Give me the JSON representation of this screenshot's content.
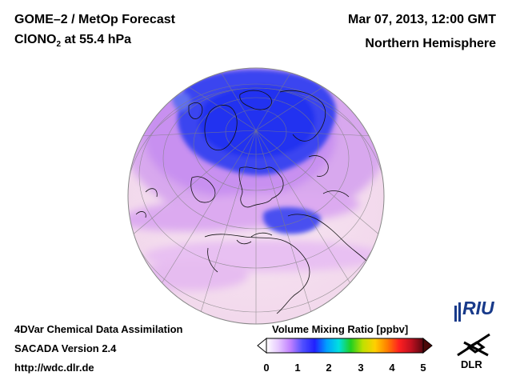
{
  "header": {
    "left_title": "GOME–2 / MetOp Forecast",
    "species_prefix": "ClONO",
    "species_sub": "2",
    "species_suffix": " at 55.4 hPa",
    "date": "Mar 07, 2013, 12:00 GMT",
    "region": "Northern Hemisphere"
  },
  "footer": {
    "line1": "4DVar Chemical Data Assimilation",
    "line2": "SACADA Version 2.4",
    "line3": "http://wdc.dlr.de"
  },
  "colorbar": {
    "title": "Volume Mixing Ratio [ppbv]",
    "ticks": [
      "0",
      "1",
      "2",
      "3",
      "4",
      "5"
    ],
    "colors": [
      "#ffffff",
      "#e6c8ff",
      "#c080ff",
      "#5050ff",
      "#2020ff",
      "#00a0ff",
      "#00e0e0",
      "#20d020",
      "#c0e000",
      "#ffd000",
      "#ff8000",
      "#ff2020",
      "#c01020",
      "#5a0810"
    ]
  },
  "logos": {
    "riu": "RIU",
    "dlr": "DLR"
  },
  "map": {
    "projection": "orthographic",
    "center": "north pole",
    "colors": {
      "high": "#3040f0",
      "mid": "#c890f0",
      "background": "#f6e4f0"
    }
  }
}
